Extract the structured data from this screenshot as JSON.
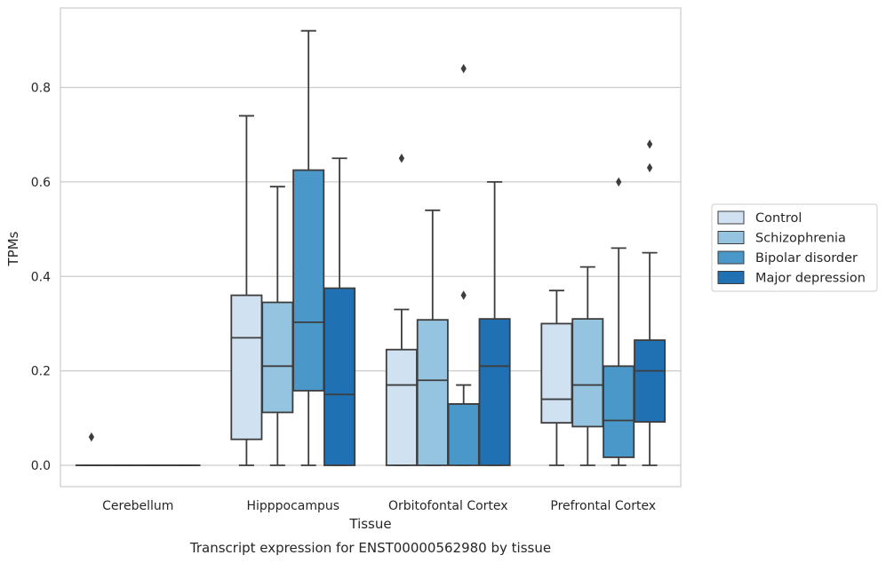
{
  "chart_data": {
    "type": "box",
    "xlabel": "Tissue",
    "ylabel": "TPMs",
    "caption": "Transcript expression for ENST00000562980 by tissue",
    "ylim": [
      -0.045,
      0.97
    ],
    "yticks": [
      0.0,
      0.2,
      0.4,
      0.6,
      0.8
    ],
    "ytick_labels": [
      "0.0",
      "0.2",
      "0.4",
      "0.6",
      "0.8"
    ],
    "grid": "horizontal",
    "legend_position": "right",
    "categories": [
      "Cerebellum",
      "Hipppocampus",
      "Orbitofontal Cortex",
      "Prefrontal Cortex"
    ],
    "series": [
      {
        "name": "Control",
        "color": "#d0e1f2",
        "boxes": [
          {
            "category": "Cerebellum",
            "whislo": 0.0,
            "q1": 0.0,
            "med": 0.0,
            "q3": 0.0,
            "whishi": 0.0,
            "fliers": [
              0.06
            ]
          },
          {
            "category": "Hipppocampus",
            "whislo": 0.0,
            "q1": 0.055,
            "med": 0.27,
            "q3": 0.36,
            "whishi": 0.74,
            "fliers": []
          },
          {
            "category": "Orbitofontal Cortex",
            "whislo": 0.0,
            "q1": 0.0,
            "med": 0.17,
            "q3": 0.245,
            "whishi": 0.33,
            "fliers": [
              0.65
            ]
          },
          {
            "category": "Prefrontal Cortex",
            "whislo": 0.0,
            "q1": 0.09,
            "med": 0.14,
            "q3": 0.3,
            "whishi": 0.37,
            "fliers": []
          }
        ]
      },
      {
        "name": "Schizophrenia",
        "color": "#94c4df",
        "boxes": [
          {
            "category": "Cerebellum",
            "whislo": 0.0,
            "q1": 0.0,
            "med": 0.0,
            "q3": 0.0,
            "whishi": 0.0,
            "fliers": []
          },
          {
            "category": "Hipppocampus",
            "whislo": 0.0,
            "q1": 0.112,
            "med": 0.21,
            "q3": 0.345,
            "whishi": 0.59,
            "fliers": []
          },
          {
            "category": "Orbitofontal Cortex",
            "whislo": 0.0,
            "q1": 0.0,
            "med": 0.18,
            "q3": 0.308,
            "whishi": 0.54,
            "fliers": []
          },
          {
            "category": "Prefrontal Cortex",
            "whislo": 0.0,
            "q1": 0.082,
            "med": 0.17,
            "q3": 0.31,
            "whishi": 0.42,
            "fliers": []
          }
        ]
      },
      {
        "name": "Bipolar disorder",
        "color": "#4a98c9",
        "boxes": [
          {
            "category": "Cerebellum",
            "whislo": 0.0,
            "q1": 0.0,
            "med": 0.0,
            "q3": 0.0,
            "whishi": 0.0,
            "fliers": []
          },
          {
            "category": "Hipppocampus",
            "whislo": 0.0,
            "q1": 0.158,
            "med": 0.303,
            "q3": 0.625,
            "whishi": 0.92,
            "fliers": []
          },
          {
            "category": "Orbitofontal Cortex",
            "whislo": 0.0,
            "q1": 0.0,
            "med": 0.13,
            "q3": 0.13,
            "whishi": 0.17,
            "fliers": [
              0.36,
              0.84
            ]
          },
          {
            "category": "Prefrontal Cortex",
            "whislo": 0.0,
            "q1": 0.017,
            "med": 0.095,
            "q3": 0.21,
            "whishi": 0.46,
            "fliers": [
              0.6
            ]
          }
        ]
      },
      {
        "name": "Major depression",
        "color": "#2070b4",
        "boxes": [
          {
            "category": "Cerebellum",
            "whislo": 0.0,
            "q1": 0.0,
            "med": 0.0,
            "q3": 0.0,
            "whishi": 0.0,
            "fliers": []
          },
          {
            "category": "Hipppocampus",
            "whislo": 0.0,
            "q1": 0.0,
            "med": 0.15,
            "q3": 0.375,
            "whishi": 0.65,
            "fliers": []
          },
          {
            "category": "Orbitofontal Cortex",
            "whislo": 0.0,
            "q1": 0.0,
            "med": 0.21,
            "q3": 0.31,
            "whishi": 0.6,
            "fliers": []
          },
          {
            "category": "Prefrontal Cortex",
            "whislo": 0.0,
            "q1": 0.092,
            "med": 0.2,
            "q3": 0.265,
            "whishi": 0.45,
            "fliers": [
              0.63,
              0.68
            ]
          }
        ]
      }
    ]
  }
}
